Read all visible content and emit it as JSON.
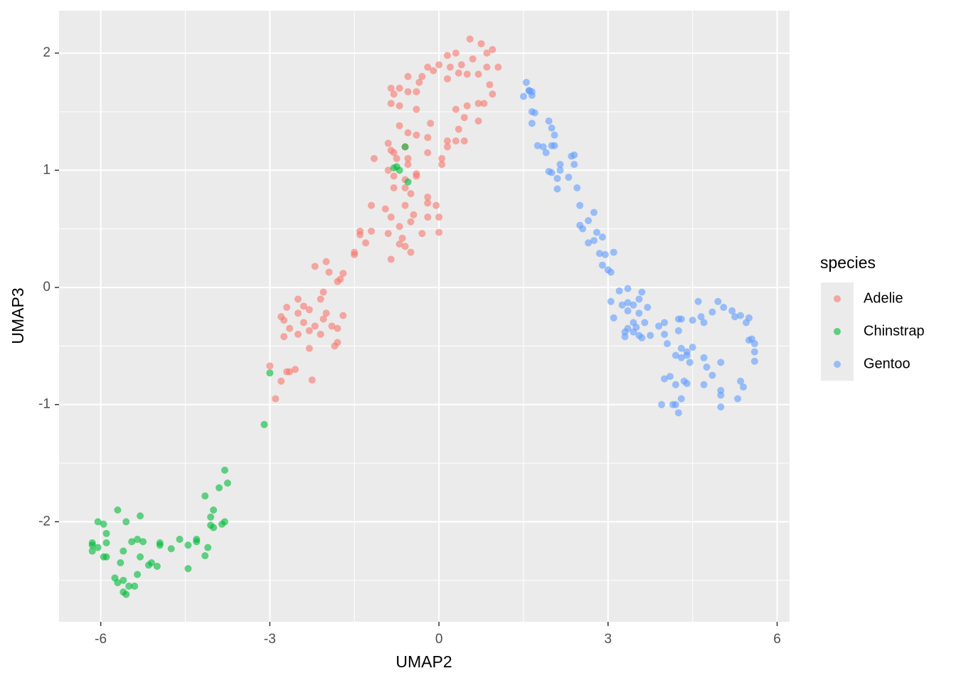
{
  "chart_data": {
    "type": "scatter",
    "xlabel": "UMAP2",
    "ylabel": "UMAP3",
    "legend_title": "species",
    "xlim": [
      -6.74,
      6.22
    ],
    "ylim": [
      -2.854,
      2.362
    ],
    "xticks": [
      -6,
      -3,
      0,
      3,
      6
    ],
    "yticks": [
      -2,
      -1,
      0,
      1,
      2
    ],
    "grid": true,
    "legend": "right",
    "opacity": 0.6,
    "series": [
      {
        "name": "Adelie",
        "color": "#F8766D",
        "x": [
          0.55,
          0.75,
          0.3,
          0.6,
          0.85,
          0.95,
          0.4,
          0.15,
          0.0,
          -0.1,
          -0.2,
          -0.55,
          -0.35,
          0.2,
          0.35,
          0.5,
          0.7,
          0.85,
          1.05,
          0.15,
          -0.3,
          -0.7,
          -0.85,
          -0.8,
          -0.4,
          -0.55,
          -0.85,
          0.9,
          0.95,
          0.8,
          0.7,
          0.5,
          0.3,
          0.45,
          0.7,
          -0.7,
          -0.4,
          -0.7,
          -0.55,
          -0.15,
          0.35,
          0.15,
          0.3,
          0.45,
          0.15,
          0.05,
          -0.9,
          -0.85,
          -0.8,
          -0.4,
          -0.2,
          -0.6,
          -1.15,
          -0.75,
          -0.55,
          -0.2,
          0.05,
          -0.9,
          -0.8,
          -0.6,
          -0.4,
          -0.55,
          -0.8,
          -0.6,
          -0.4,
          -0.5,
          -0.2,
          -0.2,
          -0.05,
          -0.6,
          -1.2,
          -0.95,
          -0.85,
          -0.45,
          -0.2,
          0.0,
          -0.7,
          -0.5,
          -1.4,
          -1.4,
          -1.2,
          -0.9,
          -0.65,
          -0.3,
          0.0,
          -0.7,
          -0.6,
          -1.3,
          -0.5,
          -0.85,
          -1.5,
          -1.5,
          -2.0,
          -2.2,
          -1.95,
          -1.7,
          -1.75,
          -1.8,
          -2.05,
          -2.1,
          -2.5,
          -2.4,
          -2.7,
          -2.3,
          -2.5,
          -2.0,
          -2.8,
          -2.75,
          -2.05,
          -1.7,
          -2.4,
          -2.2,
          -1.9,
          -1.8,
          -2.65,
          -2.3,
          -2.1,
          -2.75,
          -1.8,
          -1.85,
          -2.3,
          -2.5,
          -3.0,
          -2.7,
          -2.65,
          -2.55,
          -2.8,
          -2.25,
          -2.9
        ],
        "y": [
          2.12,
          2.08,
          2.0,
          1.95,
          2.0,
          2.03,
          1.9,
          1.98,
          1.9,
          1.85,
          1.88,
          1.8,
          1.75,
          1.88,
          1.83,
          1.82,
          1.82,
          1.88,
          1.88,
          1.78,
          1.8,
          1.7,
          1.7,
          1.65,
          1.67,
          1.67,
          1.57,
          1.73,
          1.65,
          1.57,
          1.57,
          1.55,
          1.52,
          1.45,
          1.42,
          1.55,
          1.52,
          1.38,
          1.32,
          1.4,
          1.35,
          1.25,
          1.25,
          1.25,
          1.2,
          1.1,
          1.23,
          1.17,
          1.15,
          1.3,
          1.28,
          1.2,
          1.1,
          1.1,
          1.1,
          1.15,
          1.05,
          1.0,
          0.95,
          0.92,
          0.97,
          1.05,
          0.85,
          0.85,
          0.95,
          0.8,
          0.77,
          0.72,
          0.7,
          0.7,
          0.7,
          0.67,
          0.6,
          0.62,
          0.6,
          0.6,
          0.52,
          0.56,
          0.48,
          0.45,
          0.48,
          0.46,
          0.42,
          0.46,
          0.47,
          0.37,
          0.35,
          0.38,
          0.3,
          0.24,
          0.3,
          0.28,
          0.22,
          0.18,
          0.13,
          0.12,
          0.07,
          0.05,
          -0.04,
          -0.1,
          -0.1,
          -0.16,
          -0.17,
          -0.19,
          -0.22,
          -0.22,
          -0.25,
          -0.28,
          -0.27,
          -0.24,
          -0.3,
          -0.33,
          -0.33,
          -0.35,
          -0.35,
          -0.37,
          -0.4,
          -0.42,
          -0.47,
          -0.5,
          -0.52,
          -0.4,
          -0.67,
          -0.72,
          -0.72,
          -0.7,
          -0.8,
          -0.79,
          -0.95
        ]
      },
      {
        "name": "Chinstrap",
        "color": "#00BA38",
        "x": [
          -0.75,
          -0.8,
          -0.6,
          -0.7,
          -0.55,
          -3.0,
          -3.1,
          -3.8,
          -3.75,
          -3.9,
          -4.15,
          -4.0,
          -4.05,
          -3.8,
          -3.85,
          -4.05,
          -4.0,
          -4.1,
          -4.3,
          -4.3,
          -4.15,
          -4.45,
          -4.6,
          -4.45,
          -4.75,
          -4.95,
          -4.95,
          -5.0,
          -5.1,
          -5.15,
          -5.25,
          -5.3,
          -5.35,
          -5.4,
          -5.45,
          -5.35,
          -5.3,
          -5.55,
          -5.7,
          -5.6,
          -5.6,
          -5.6,
          -5.55,
          -5.5,
          -5.65,
          -5.7,
          -5.9,
          -5.9,
          -5.9,
          -5.95,
          -6.05,
          -6.05,
          -6.15,
          -6.15,
          -6.15,
          -5.95,
          -5.75
        ],
        "y": [
          1.03,
          1.02,
          1.2,
          1.0,
          0.9,
          -0.73,
          -1.17,
          -1.56,
          -1.67,
          -1.71,
          -1.78,
          -1.9,
          -1.96,
          -2.0,
          -2.02,
          -2.03,
          -2.05,
          -2.22,
          -2.15,
          -2.17,
          -2.29,
          -2.2,
          -2.15,
          -2.4,
          -2.23,
          -2.18,
          -2.2,
          -2.38,
          -2.35,
          -2.37,
          -2.17,
          -2.3,
          -2.45,
          -2.55,
          -2.17,
          -2.15,
          -1.95,
          -2.0,
          -1.9,
          -2.25,
          -2.5,
          -2.6,
          -2.62,
          -2.55,
          -2.35,
          -2.52,
          -2.3,
          -2.1,
          -2.18,
          -2.02,
          -2.0,
          -2.22,
          -2.18,
          -2.2,
          -2.25,
          -2.3,
          -2.48
        ]
      },
      {
        "name": "Gentoo",
        "color": "#619CFF",
        "x": [
          1.55,
          1.6,
          1.5,
          1.65,
          1.65,
          1.6,
          1.65,
          1.7,
          1.65,
          1.75,
          1.85,
          1.95,
          2.0,
          2.05,
          2.0,
          2.05,
          1.9,
          2.15,
          2.15,
          1.95,
          2.0,
          2.1,
          2.1,
          2.3,
          2.4,
          2.4,
          2.35,
          2.45,
          2.5,
          2.75,
          2.65,
          2.5,
          2.55,
          2.8,
          2.9,
          2.65,
          2.75,
          2.95,
          2.85,
          3.1,
          2.9,
          3.0,
          3.05,
          3.35,
          3.2,
          3.6,
          3.55,
          3.05,
          3.35,
          3.45,
          3.25,
          3.7,
          3.35,
          3.55,
          3.1,
          3.45,
          3.65,
          3.5,
          3.35,
          3.3,
          3.45,
          3.55,
          3.3,
          3.6,
          3.75,
          3.9,
          4.0,
          4.25,
          4.3,
          4.25,
          4.5,
          4.65,
          4.7,
          4.85,
          4.6,
          4.95,
          5.05,
          5.2,
          5.25,
          5.35,
          5.45,
          5.5,
          5.5,
          5.55,
          5.6,
          5.6,
          5.6,
          4.0,
          4.05,
          4.3,
          4.4,
          4.5,
          4.3,
          4.4,
          4.45,
          4.2,
          4.7,
          4.75,
          4.85,
          5.0,
          5.0,
          5.0,
          5.35,
          5.4,
          5.3,
          5.0,
          4.0,
          4.1,
          4.2,
          4.3,
          4.15,
          4.2,
          3.95,
          4.25,
          4.35,
          4.4,
          4.7
        ],
        "y": [
          1.75,
          1.68,
          1.63,
          1.67,
          1.64,
          1.68,
          1.5,
          1.49,
          1.4,
          1.21,
          1.2,
          1.42,
          1.36,
          1.3,
          1.21,
          1.21,
          1.15,
          1.05,
          1.0,
          0.99,
          0.98,
          0.93,
          0.84,
          0.94,
          1.13,
          1.05,
          1.12,
          0.85,
          0.7,
          0.64,
          0.57,
          0.53,
          0.5,
          0.47,
          0.43,
          0.38,
          0.4,
          0.28,
          0.29,
          0.3,
          0.19,
          0.15,
          0.13,
          -0.01,
          -0.03,
          -0.04,
          -0.1,
          -0.12,
          -0.13,
          -0.15,
          -0.15,
          -0.17,
          -0.2,
          -0.22,
          -0.26,
          -0.3,
          -0.3,
          -0.34,
          -0.35,
          -0.38,
          -0.38,
          -0.41,
          -0.42,
          -0.43,
          -0.41,
          -0.33,
          -0.3,
          -0.27,
          -0.27,
          -0.37,
          -0.28,
          -0.25,
          -0.3,
          -0.21,
          -0.12,
          -0.12,
          -0.17,
          -0.2,
          -0.25,
          -0.24,
          -0.3,
          -0.26,
          -0.45,
          -0.44,
          -0.48,
          -0.55,
          -0.63,
          -0.4,
          -0.48,
          -0.52,
          -0.55,
          -0.51,
          -0.6,
          -0.58,
          -0.64,
          -0.58,
          -0.6,
          -0.68,
          -0.75,
          -0.64,
          -0.88,
          -0.92,
          -0.8,
          -0.85,
          -0.95,
          -1.02,
          -0.78,
          -0.76,
          -0.83,
          -0.95,
          -1.0,
          -1.0,
          -1.0,
          -1.07,
          -0.8,
          -0.82,
          -0.83
        ]
      }
    ]
  }
}
